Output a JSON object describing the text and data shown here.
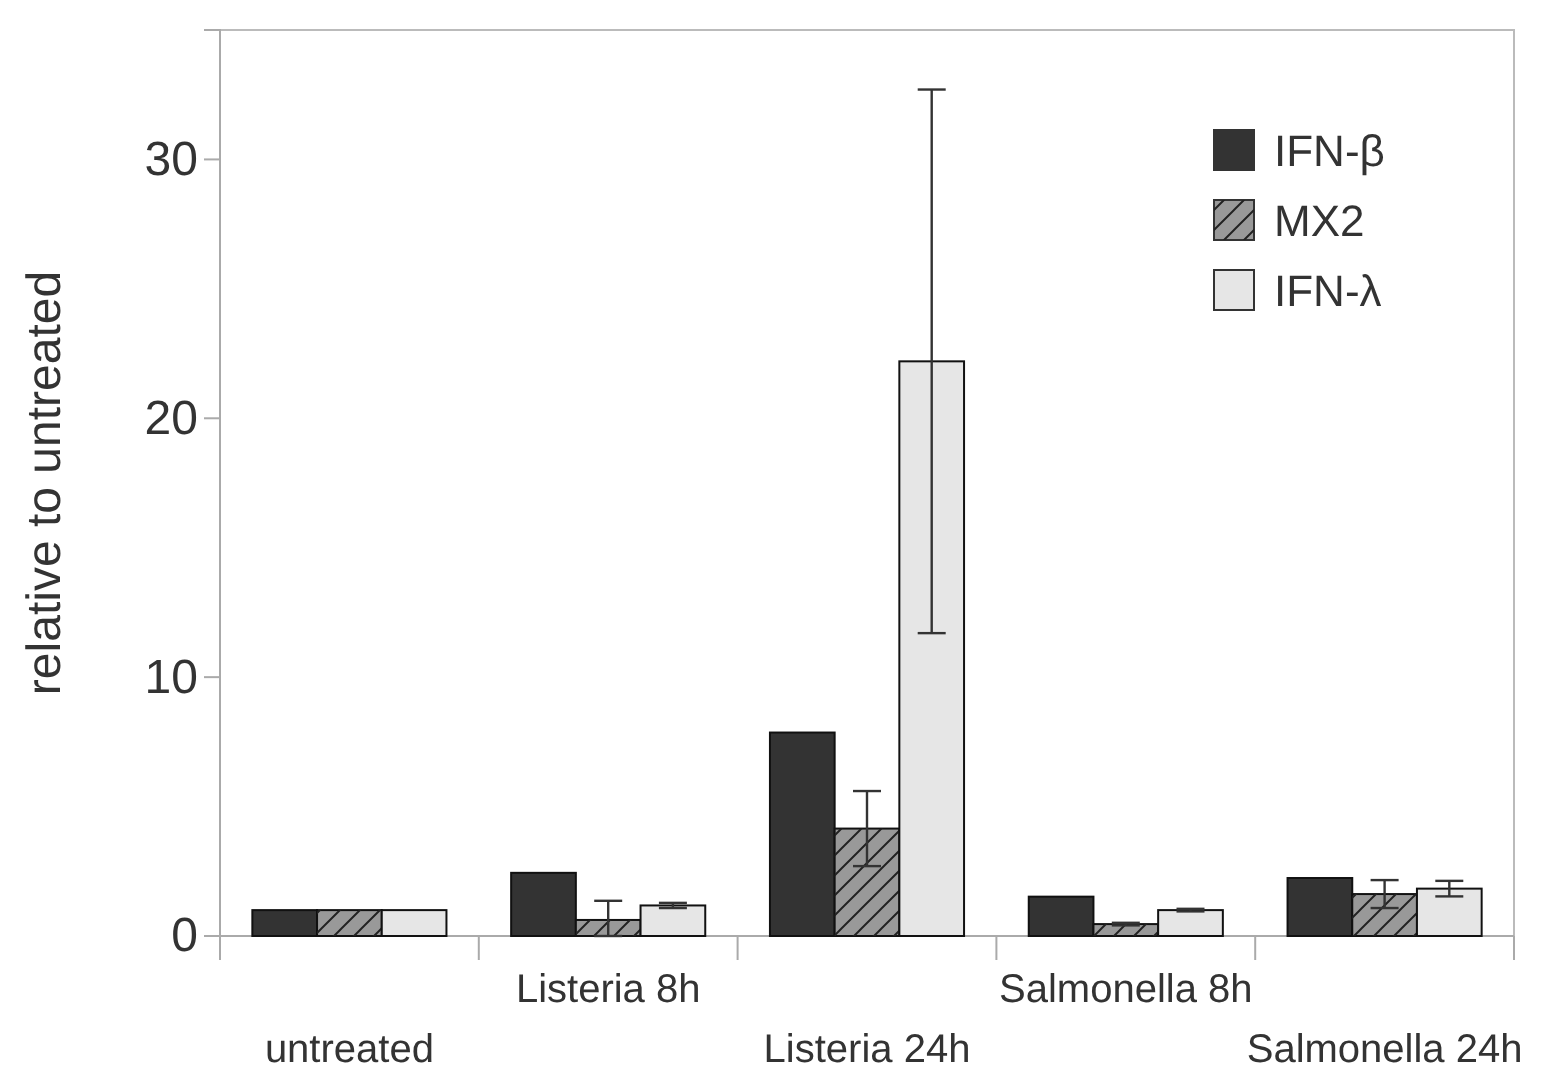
{
  "chart_data": {
    "type": "bar",
    "ylabel": "relative to untreated",
    "categories": [
      "untreated",
      "Listeria 8h",
      "Listeria 24h",
      "Salmonella 8h",
      "Salmonella 24h"
    ],
    "series": [
      {
        "name": "IFN-β",
        "color": "#333333",
        "values": [
          1.0,
          2.44,
          7.86,
          1.52,
          2.24
        ]
      },
      {
        "name": "MX2",
        "color": "#999999",
        "values": [
          1.0,
          0.62,
          4.15,
          0.46,
          1.62
        ],
        "errors": [
          null,
          [
            0,
            1.36
          ],
          1.45,
          0.05,
          0.54
        ]
      },
      {
        "name": "IFN-λ",
        "color": "#e6e6e6",
        "values": [
          1.0,
          1.18,
          22.2,
          1.0,
          1.83
        ],
        "errors": [
          null,
          0.1,
          10.5,
          0.05,
          0.3
        ]
      }
    ],
    "ylim": [
      0,
      35
    ],
    "yticks": [
      0,
      10,
      20,
      30
    ],
    "grid": false,
    "legend": "top right"
  }
}
